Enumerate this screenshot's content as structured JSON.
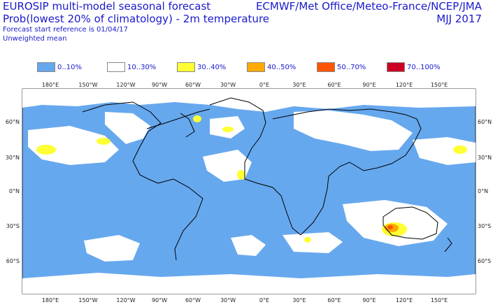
{
  "header": {
    "title_line1": "EUROSIP multi-model seasonal forecast",
    "title_line2": "Prob(lowest 20% of climatology) - 2m temperature",
    "reference": "Forecast start reference is 01/04/17",
    "weighting": "Unweighted mean",
    "producers": "ECMWF/Met Office/Meteo-France/NCEP/JMA",
    "period": "MJJ 2017"
  },
  "legend": [
    {
      "label": "0..10%",
      "color": "#66a8ee"
    },
    {
      "label": "10..30%",
      "color": "#ffffff"
    },
    {
      "label": "30..40%",
      "color": "#ffff33"
    },
    {
      "label": "40..50%",
      "color": "#ffaa00"
    },
    {
      "label": "50..70%",
      "color": "#ff5500"
    },
    {
      "label": "70..100%",
      "color": "#cc0022"
    }
  ],
  "map": {
    "lon_labels": [
      "180°E",
      "150°W",
      "120°W",
      "90°W",
      "60°W",
      "30°W",
      "0°E",
      "30°E",
      "60°E",
      "90°E",
      "120°E",
      "150°E"
    ],
    "lat_labels": [
      "60°N",
      "30°N",
      "0°N",
      "30°S",
      "60°S"
    ],
    "ocean_color": "#66a8ee",
    "coast_color": "#000000"
  }
}
